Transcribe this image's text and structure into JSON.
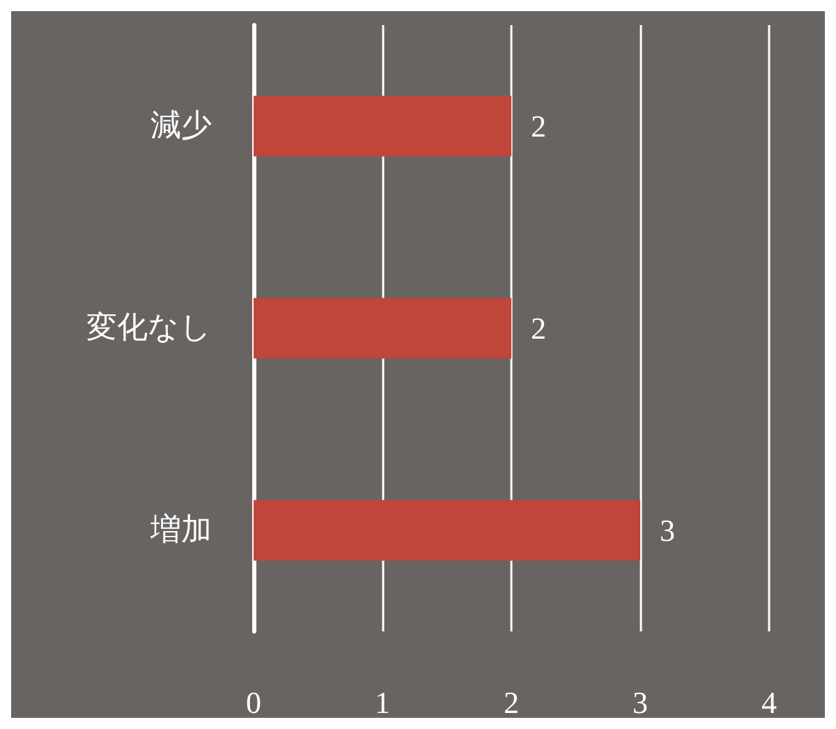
{
  "chart_data": {
    "type": "bar",
    "orientation": "horizontal",
    "categories": [
      "減少",
      "変化なし",
      "増加"
    ],
    "values": [
      2,
      2,
      3
    ],
    "color": "#c0453a",
    "xlim": [
      0,
      4
    ],
    "xticks": [
      0,
      1,
      2,
      3,
      4
    ],
    "grid": "x",
    "data_labels": true
  }
}
